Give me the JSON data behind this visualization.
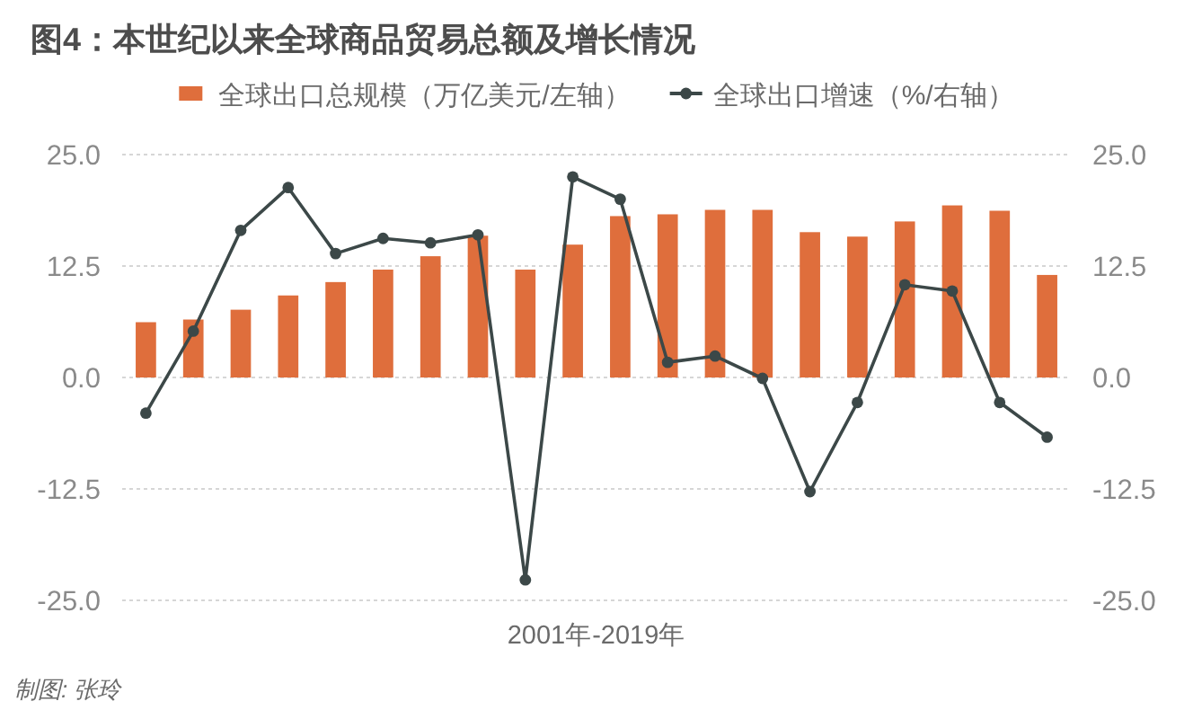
{
  "chart_data": {
    "type": "bar",
    "title": "图4：本世纪以来全球商品贸易总额及增长情况",
    "xlabel": "2001年-2019年",
    "categories": [
      null,
      null,
      null,
      null,
      null,
      null,
      null,
      null,
      null,
      null,
      null,
      null,
      null,
      null,
      null,
      null,
      null,
      null,
      null,
      null
    ],
    "series": [
      {
        "name": "全球出口总规模（万亿美元/左轴）",
        "color": "#df6e3c",
        "values": [
          6.2,
          6.5,
          7.6,
          9.2,
          10.7,
          12.1,
          13.6,
          15.9,
          12.1,
          14.9,
          18.1,
          18.3,
          18.8,
          18.8,
          16.3,
          15.8,
          17.5,
          19.3,
          18.7,
          11.5
        ]
      },
      {
        "name": "全球出口增速（%/右轴）",
        "type": "line",
        "axis": "y2",
        "color": "#3c4848",
        "values": [
          -4,
          5.2,
          16.5,
          21.3,
          13.9,
          15.6,
          15.1,
          16.0,
          -22.7,
          22.5,
          20.0,
          1.7,
          2.4,
          -0.1,
          -12.8,
          -2.8,
          10.4,
          9.7,
          -2.8,
          -6.7
        ]
      }
    ],
    "ylim": [
      -25,
      25
    ],
    "yticks": [
      {
        "value": -25,
        "label": "-25.0"
      },
      {
        "value": -12.5,
        "label": "-12.5"
      },
      {
        "value": 0,
        "label": "0.0"
      },
      {
        "value": 12.5,
        "label": "12.5"
      },
      {
        "value": 25,
        "label": "25.0"
      }
    ],
    "y2lim": [
      -25,
      25
    ],
    "y2ticks": [
      {
        "value": -25,
        "label": "-25.0"
      },
      {
        "value": -12.5,
        "label": "-12.5"
      },
      {
        "value": 0,
        "label": "0.0"
      },
      {
        "value": 12.5,
        "label": "12.5"
      },
      {
        "value": 25,
        "label": "25.0"
      }
    ],
    "grid": "y",
    "legend": "top",
    "marker": "circle",
    "annotations": [
      "制图: 张玲"
    ]
  }
}
